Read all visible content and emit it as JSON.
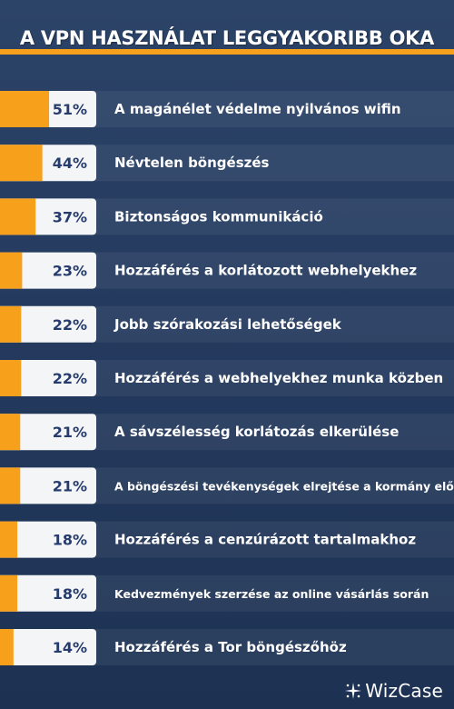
{
  "page_title": "A VPN HASZNÁLAT LEGGYAKORIBB OKA",
  "brand": "WizCase",
  "colors": {
    "accent": "#f7a01c",
    "pct_text": "#263c6c",
    "label_text": "#ffffff",
    "row_bg": "#3a5580"
  },
  "chart_data": {
    "type": "bar",
    "orientation": "horizontal",
    "title": "A VPN HASZNÁLAT LEGGYAKORIBB OKA",
    "categories": [
      "A magánélet védelme nyilvános wifin",
      "Névtelen böngészés",
      "Biztonságos kommunikáció",
      "Hozzáférés a korlátozott webhelyekhez",
      "Jobb szórakozási lehetőségek",
      "Hozzáférés a webhelyekhez munka közben",
      "A sávszélesség korlátozás elkerülése",
      "A böngészési tevékenységek elrejtése a kormány elől",
      "Hozzáférés a cenzúrázott tartalmakhoz",
      "Kedvezmények szerzése az online vásárlás során",
      "Hozzáférés a Tor böngészőhöz"
    ],
    "values": [
      51,
      44,
      37,
      23,
      22,
      22,
      21,
      21,
      18,
      18,
      14
    ],
    "value_labels": [
      "51%",
      "44%",
      "37%",
      "23%",
      "22%",
      "22%",
      "21%",
      "21%",
      "18%",
      "18%",
      "14%"
    ]
  }
}
